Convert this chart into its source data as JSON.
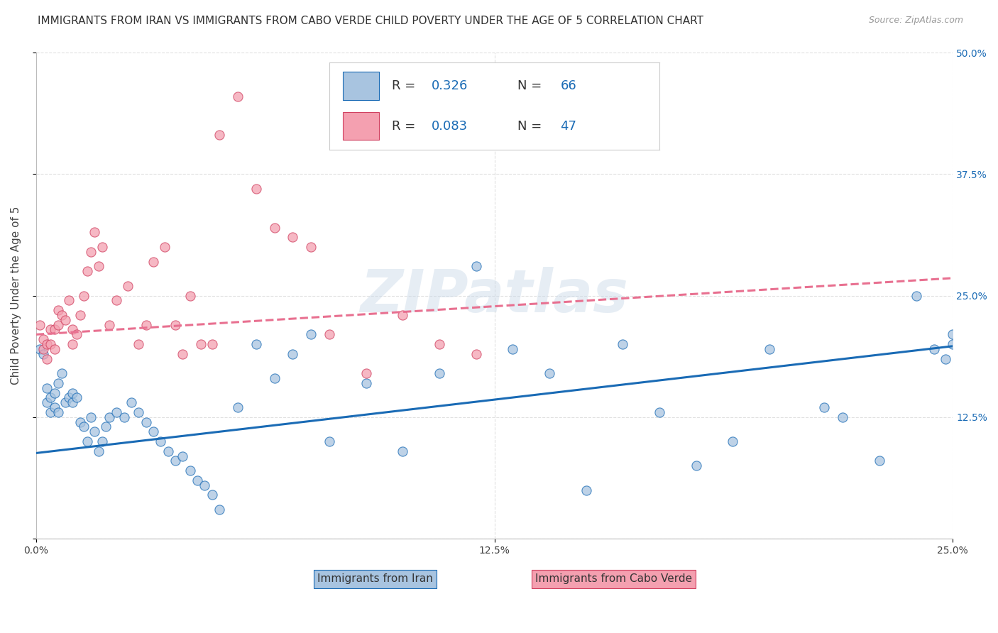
{
  "title": "IMMIGRANTS FROM IRAN VS IMMIGRANTS FROM CABO VERDE CHILD POVERTY UNDER THE AGE OF 5 CORRELATION CHART",
  "source": "Source: ZipAtlas.com",
  "ylabel": "Child Poverty Under the Age of 5",
  "xlim": [
    0.0,
    0.25
  ],
  "ylim": [
    0.0,
    0.5
  ],
  "xtick_vals": [
    0.0,
    0.125,
    0.25
  ],
  "xtick_labels": [
    "0.0%",
    "12.5%",
    "25.0%"
  ],
  "ytick_labels_right": [
    "50.0%",
    "37.5%",
    "25.0%",
    "12.5%"
  ],
  "yticks_right": [
    0.5,
    0.375,
    0.25,
    0.125
  ],
  "iran_r": "0.326",
  "iran_n": "66",
  "cabo_r": "0.083",
  "cabo_n": "47",
  "iran_fill": "#a8c4e0",
  "iran_edge": "#1a6bb5",
  "cabo_fill": "#f4a0b0",
  "cabo_edge": "#d04060",
  "iran_line_color": "#1a6bb5",
  "cabo_line_color": "#e87090",
  "iran_scatter_x": [
    0.001,
    0.002,
    0.003,
    0.003,
    0.004,
    0.004,
    0.005,
    0.005,
    0.006,
    0.006,
    0.007,
    0.008,
    0.009,
    0.01,
    0.01,
    0.011,
    0.012,
    0.013,
    0.014,
    0.015,
    0.016,
    0.017,
    0.018,
    0.019,
    0.02,
    0.022,
    0.024,
    0.026,
    0.028,
    0.03,
    0.032,
    0.034,
    0.036,
    0.038,
    0.04,
    0.042,
    0.044,
    0.046,
    0.048,
    0.05,
    0.055,
    0.06,
    0.065,
    0.07,
    0.075,
    0.08,
    0.09,
    0.1,
    0.11,
    0.12,
    0.13,
    0.14,
    0.15,
    0.16,
    0.17,
    0.18,
    0.19,
    0.2,
    0.215,
    0.22,
    0.23,
    0.24,
    0.245,
    0.248,
    0.25,
    0.25
  ],
  "iran_scatter_y": [
    0.195,
    0.19,
    0.14,
    0.155,
    0.13,
    0.145,
    0.135,
    0.15,
    0.13,
    0.16,
    0.17,
    0.14,
    0.145,
    0.14,
    0.15,
    0.145,
    0.12,
    0.115,
    0.1,
    0.125,
    0.11,
    0.09,
    0.1,
    0.115,
    0.125,
    0.13,
    0.125,
    0.14,
    0.13,
    0.12,
    0.11,
    0.1,
    0.09,
    0.08,
    0.085,
    0.07,
    0.06,
    0.055,
    0.045,
    0.03,
    0.135,
    0.2,
    0.165,
    0.19,
    0.21,
    0.1,
    0.16,
    0.09,
    0.17,
    0.28,
    0.195,
    0.17,
    0.05,
    0.2,
    0.13,
    0.075,
    0.1,
    0.195,
    0.135,
    0.125,
    0.08,
    0.25,
    0.195,
    0.185,
    0.2,
    0.21
  ],
  "cabo_scatter_x": [
    0.001,
    0.002,
    0.002,
    0.003,
    0.003,
    0.004,
    0.004,
    0.005,
    0.005,
    0.006,
    0.006,
    0.007,
    0.008,
    0.009,
    0.01,
    0.01,
    0.011,
    0.012,
    0.013,
    0.014,
    0.015,
    0.016,
    0.017,
    0.018,
    0.02,
    0.022,
    0.025,
    0.028,
    0.03,
    0.032,
    0.035,
    0.038,
    0.04,
    0.042,
    0.045,
    0.048,
    0.05,
    0.055,
    0.06,
    0.065,
    0.07,
    0.075,
    0.08,
    0.09,
    0.1,
    0.11,
    0.12
  ],
  "cabo_scatter_y": [
    0.22,
    0.195,
    0.205,
    0.185,
    0.2,
    0.215,
    0.2,
    0.195,
    0.215,
    0.22,
    0.235,
    0.23,
    0.225,
    0.245,
    0.2,
    0.215,
    0.21,
    0.23,
    0.25,
    0.275,
    0.295,
    0.315,
    0.28,
    0.3,
    0.22,
    0.245,
    0.26,
    0.2,
    0.22,
    0.285,
    0.3,
    0.22,
    0.19,
    0.25,
    0.2,
    0.2,
    0.415,
    0.455,
    0.36,
    0.32,
    0.31,
    0.3,
    0.21,
    0.17,
    0.23,
    0.2,
    0.19
  ],
  "iran_trend_x": [
    0.0,
    0.25
  ],
  "iran_trend_y": [
    0.088,
    0.198
  ],
  "cabo_trend_x": [
    0.0,
    0.25
  ],
  "cabo_trend_y": [
    0.21,
    0.268
  ],
  "watermark": "ZIPatlas",
  "bg_color": "#ffffff",
  "grid_color": "#dddddd",
  "title_fontsize": 11,
  "label_fontsize": 11,
  "tick_fontsize": 10,
  "legend_fontsize": 13,
  "bottom_legend_iran": "Immigrants from Iran",
  "bottom_legend_cabo": "Immigrants from Cabo Verde"
}
